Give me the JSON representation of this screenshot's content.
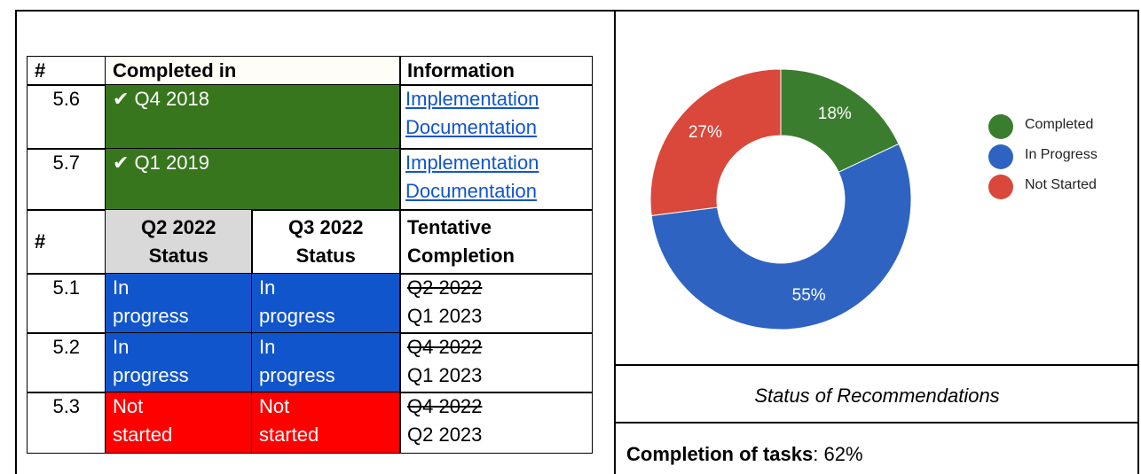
{
  "table": {
    "header1": [
      "#",
      "Completed in",
      "Information"
    ],
    "completed_rows": [
      {
        "id": "5.6",
        "completed": "✔ Q4 2018",
        "fill": "#38761d",
        "links": [
          "Implementation",
          "Documentation"
        ]
      },
      {
        "id": "5.7",
        "completed": "✔ Q1 2019",
        "fill": "#38761d",
        "links": [
          "Implementation",
          "Documentation"
        ]
      }
    ],
    "header2": [
      "#",
      "Q2 2022 Status",
      "Q3 2022 Status",
      "Tentative Completion"
    ],
    "header2_fill": "#d9d9d9",
    "status_rows": [
      {
        "id": "5.1",
        "q2": "In progress",
        "q2_fill": "#1155cc",
        "q3": "In progress",
        "q3_fill": "#1155cc",
        "old": "Q2 2022",
        "new": "Q1 2023"
      },
      {
        "id": "5.2",
        "q2": "In progress",
        "q2_fill": "#1155cc",
        "q3": "In progress",
        "q3_fill": "#1155cc",
        "old": "Q4 2022",
        "new": "Q1 2023"
      },
      {
        "id": "5.3",
        "q2": "Not started",
        "q2_fill": "#ff0000",
        "q3": "Not started",
        "q3_fill": "#ff0000",
        "old": "Q4 2022",
        "new": "Q2 2023"
      }
    ]
  },
  "chart_data": {
    "type": "pie",
    "categories": [
      "Completed",
      "In Progress",
      "Not Started"
    ],
    "values": [
      18,
      55,
      27
    ],
    "value_labels": [
      "18%",
      "55%",
      "27%"
    ],
    "colors": [
      "#3b7d2e",
      "#2f63c1",
      "#d9483b"
    ],
    "donut": true,
    "legend": "right"
  },
  "caption": "Status of Recommendations",
  "completion": {
    "label": "Completion of tasks",
    "text": ": 62%"
  }
}
